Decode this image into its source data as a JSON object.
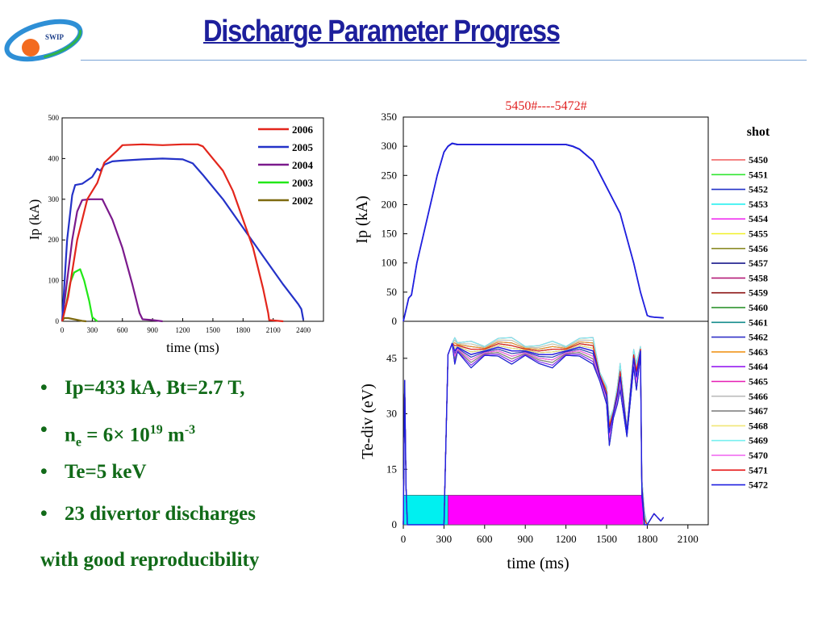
{
  "slide": {
    "title": "Discharge Parameter Progress",
    "logo_text": "SWIP",
    "bullets": [
      {
        "text": "Ip=433 kA,   Bt=2.7 T,"
      },
      {
        "main": "n",
        "sub": "e",
        "mid": " = 6× 10",
        "sup": "19",
        "mid2": " m",
        "sup2": "-3"
      },
      {
        "text": "Te=5 keV"
      },
      {
        "text": "23 divertor discharges"
      }
    ],
    "summary": "with good reproducibility"
  },
  "chart_data": [
    {
      "type": "line",
      "title": "",
      "xlabel": "time (ms)",
      "ylabel": "Ip (kA)",
      "xlim": [
        0,
        2600
      ],
      "ylim": [
        0,
        500
      ],
      "xticks": [
        0,
        300,
        600,
        900,
        1200,
        1500,
        1800,
        2100,
        2400
      ],
      "yticks": [
        0,
        100,
        200,
        300,
        400,
        500
      ],
      "legend": "top-right",
      "series": [
        {
          "name": "2006",
          "color": "#e3261c",
          "x": [
            0,
            60,
            150,
            250,
            350,
            420,
            550,
            600,
            800,
            1000,
            1200,
            1350,
            1400,
            1500,
            1600,
            1700,
            1800,
            1900,
            2000,
            2050,
            2060,
            2200
          ],
          "y": [
            0,
            60,
            200,
            300,
            340,
            390,
            420,
            433,
            435,
            433,
            435,
            435,
            430,
            400,
            370,
            320,
            250,
            180,
            80,
            20,
            3,
            0
          ]
        },
        {
          "name": "2005",
          "color": "#2432c8",
          "x": [
            0,
            50,
            100,
            130,
            200,
            300,
            350,
            380,
            420,
            500,
            600,
            800,
            1000,
            1200,
            1300,
            1400,
            1600,
            1800,
            2000,
            2200,
            2350,
            2380,
            2400
          ],
          "y": [
            0,
            200,
            310,
            335,
            338,
            355,
            375,
            370,
            385,
            393,
            395,
            398,
            400,
            398,
            388,
            360,
            300,
            230,
            160,
            90,
            42,
            30,
            3
          ]
        },
        {
          "name": "2004",
          "color": "#7b1a8c",
          "x": [
            0,
            50,
            100,
            150,
            200,
            280,
            400,
            500,
            600,
            700,
            770,
            800,
            900,
            1000
          ],
          "y": [
            0,
            100,
            200,
            270,
            298,
            300,
            300,
            250,
            180,
            90,
            20,
            5,
            3,
            0
          ]
        },
        {
          "name": "2003",
          "color": "#22e818",
          "x": [
            0,
            40,
            80,
            120,
            180,
            220,
            270,
            300,
            350
          ],
          "y": [
            0,
            40,
            95,
            120,
            128,
            100,
            50,
            10,
            0
          ]
        },
        {
          "name": "2002",
          "color": "#7e6a10",
          "x": [
            0,
            20,
            60,
            120,
            160,
            200,
            240
          ],
          "y": [
            0,
            8,
            8,
            5,
            3,
            1,
            0
          ]
        }
      ]
    },
    {
      "type": "line",
      "title": "5450#----5472#",
      "xlabel": "",
      "ylabel": "Ip (kA)",
      "xlim": [
        0,
        2250
      ],
      "ylim": [
        0,
        350
      ],
      "yticks": [
        0,
        50,
        100,
        150,
        200,
        250,
        300,
        350
      ],
      "legend_title": "shot",
      "legend": "right",
      "series_names": [
        "5450",
        "5451",
        "5452",
        "5453",
        "5454",
        "5455",
        "5456",
        "5457",
        "5458",
        "5459",
        "5460",
        "5461",
        "5462",
        "5463",
        "5464",
        "5465",
        "5466",
        "5467",
        "5468",
        "5469",
        "5470",
        "5471",
        "5472"
      ],
      "series_colors": [
        "#f05a5a",
        "#32e632",
        "#2232c8",
        "#28f0f0",
        "#f032f0",
        "#f0f028",
        "#8c8c28",
        "#1a1a8c",
        "#b41e78",
        "#8c1414",
        "#1e8c1e",
        "#148c8c",
        "#3232c8",
        "#f0961e",
        "#961ef0",
        "#e61eb4",
        "#bebebe",
        "#828282",
        "#f0e678",
        "#78f0f0",
        "#f064f0",
        "#e61414",
        "#2020e0"
      ],
      "series": [
        {
          "name": "5472",
          "x": [
            0,
            20,
            40,
            60,
            100,
            150,
            200,
            250,
            300,
            330,
            360,
            400,
            600,
            800,
            1000,
            1200,
            1250,
            1300,
            1400,
            1500,
            1600,
            1700,
            1750,
            1800,
            1820,
            1850,
            1920
          ],
          "y": [
            0,
            20,
            40,
            45,
            100,
            150,
            200,
            250,
            290,
            300,
            305,
            303,
            303,
            303,
            303,
            303,
            300,
            295,
            275,
            230,
            185,
            100,
            50,
            10,
            8,
            7,
            6
          ]
        }
      ]
    },
    {
      "type": "line",
      "title": "",
      "xlabel": "time (ms)",
      "ylabel": "Te-div (eV)",
      "xlim": [
        0,
        2250
      ],
      "ylim": [
        0,
        55
      ],
      "xticks": [
        0,
        300,
        600,
        900,
        1200,
        1500,
        1800,
        2100
      ],
      "yticks": [
        0,
        15,
        30,
        45
      ],
      "series": [
        {
          "name": "5472",
          "x": [
            0,
            10,
            20,
            30,
            300,
            330,
            350,
            360,
            380,
            400,
            450,
            500,
            600,
            700,
            800,
            900,
            1000,
            1100,
            1200,
            1300,
            1400,
            1450,
            1500,
            1520,
            1550,
            1580,
            1600,
            1650,
            1700,
            1720,
            1750,
            1760,
            1780,
            1800,
            1850,
            1900,
            1920
          ],
          "y": [
            0,
            39,
            10,
            0,
            0,
            46,
            48,
            49,
            47,
            48,
            47,
            46,
            47,
            48,
            47,
            47,
            46,
            46,
            47,
            48,
            47,
            40,
            35,
            25,
            30,
            35,
            40,
            25,
            45,
            40,
            47,
            10,
            0,
            0,
            3,
            1,
            2
          ]
        }
      ],
      "annotation_bars": [
        {
          "x0": 0,
          "x1": 330,
          "y0": 0,
          "y1": 8,
          "color": "#00f0f0"
        },
        {
          "x0": 330,
          "x1": 1770,
          "y0": 0,
          "y1": 8,
          "color": "#ff00ff"
        }
      ]
    }
  ]
}
